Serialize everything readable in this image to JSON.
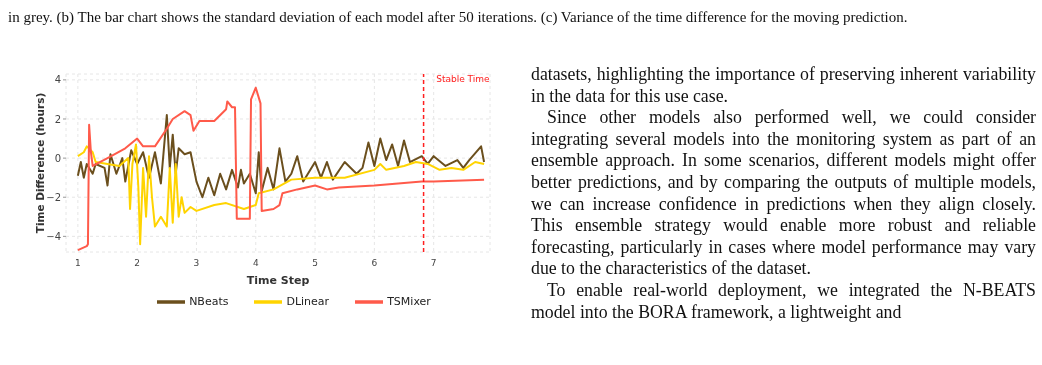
{
  "chart_data": {
    "type": "line",
    "xlabel": "Time Step",
    "ylabel": "Time Difference (hours)",
    "xlim": [
      0.8,
      7.95
    ],
    "ylim": [
      -4.8,
      4.3
    ],
    "xticks": [
      1,
      2,
      3,
      4,
      5,
      6,
      7
    ],
    "yticks": [
      -4,
      -2,
      0,
      2,
      4
    ],
    "grid": true,
    "legend": "bottom",
    "line_style": "solid",
    "marker": "none",
    "ref_lines": [
      {
        "axis": "x",
        "value": 6.83,
        "label": "Stable Time",
        "color": "#ff2020",
        "line_style": "dashed"
      }
    ],
    "series": [
      {
        "name": "NBeats",
        "color": "#6b4f1d",
        "x": [
          1.0,
          1.05,
          1.1,
          1.15,
          1.25,
          1.3,
          1.45,
          1.5,
          1.55,
          1.65,
          1.75,
          1.8,
          1.9,
          2.0,
          2.1,
          2.2,
          2.3,
          2.4,
          2.5,
          2.55,
          2.6,
          2.65,
          2.7,
          2.8,
          2.9,
          3.0,
          3.1,
          3.2,
          3.3,
          3.4,
          3.5,
          3.6,
          3.7,
          3.75,
          3.8,
          3.9,
          4.0,
          4.05,
          4.1,
          4.2,
          4.3,
          4.4,
          4.5,
          4.6,
          4.7,
          4.8,
          5.0,
          5.1,
          5.2,
          5.3,
          5.5,
          5.7,
          5.8,
          5.9,
          6.0,
          6.1,
          6.2,
          6.3,
          6.4,
          6.5,
          6.6,
          6.8,
          6.9,
          7.0,
          7.2,
          7.4,
          7.5,
          7.6,
          7.8,
          7.85
        ],
        "values": [
          -0.9,
          -0.2,
          -1.0,
          -0.3,
          -0.8,
          -0.3,
          -0.5,
          -1.4,
          0.2,
          -0.8,
          0,
          -1.2,
          0.4,
          -0.3,
          0.3,
          -1.0,
          0.3,
          -1.3,
          2.2,
          -0.5,
          1.2,
          -0.8,
          0.5,
          0.2,
          0.3,
          -1.2,
          -2.0,
          -1.0,
          -1.9,
          -0.8,
          -1.6,
          -0.6,
          -1.5,
          -0.6,
          -1.3,
          -0.8,
          -1.8,
          0.3,
          -1.7,
          -0.5,
          -1.6,
          0.5,
          -1.2,
          -0.8,
          0.1,
          -1.2,
          -0.2,
          -1.0,
          -0.2,
          -1.1,
          -0.2,
          -0.8,
          -0.5,
          0.8,
          -0.4,
          1.0,
          -0.1,
          0.7,
          -0.4,
          0.9,
          -0.2,
          0.1,
          -0.3,
          0.1,
          -0.4,
          -0.1,
          -0.5,
          -0.1,
          0.6,
          -0.2
        ]
      },
      {
        "name": "DLinear",
        "color": "#ffd400",
        "x": [
          1.0,
          1.1,
          1.15,
          1.25,
          1.3,
          1.5,
          1.7,
          1.85,
          1.88,
          1.92,
          1.98,
          2.02,
          2.05,
          2.1,
          2.15,
          2.2,
          2.25,
          2.3,
          2.4,
          2.5,
          2.55,
          2.6,
          2.65,
          2.7,
          2.75,
          2.8,
          2.9,
          3.0,
          3.3,
          3.5,
          3.8,
          4.0,
          4.05,
          4.3,
          4.6,
          5.0,
          5.5,
          6.0,
          6.1,
          6.2,
          6.5,
          6.7,
          6.9,
          7.1,
          7.3,
          7.5,
          7.7,
          7.85
        ],
        "values": [
          0.1,
          0.3,
          0.6,
          0.3,
          -0.2,
          -0.3,
          -0.4,
          0,
          -2.6,
          -0.3,
          0.7,
          -1.5,
          -4.4,
          -0.5,
          -3.0,
          0.1,
          -2.0,
          -3.5,
          -3.0,
          -3.5,
          -0.5,
          -3.3,
          -0.3,
          -3.0,
          -2.0,
          -2.8,
          -2.5,
          -2.7,
          -2.4,
          -2.3,
          -2.6,
          -2.4,
          -1.8,
          -1.6,
          -1.1,
          -1.0,
          -1.0,
          -0.6,
          -0.3,
          -0.6,
          -0.4,
          -0.2,
          -0.3,
          -0.6,
          -0.5,
          -0.6,
          -0.2,
          -0.3
        ]
      },
      {
        "name": "TSMixer",
        "color": "#ff5a4a",
        "x": [
          1.0,
          1.15,
          1.17,
          1.19,
          1.22,
          1.25,
          1.5,
          1.8,
          2.0,
          2.1,
          2.3,
          2.5,
          2.6,
          2.8,
          2.9,
          2.95,
          3.05,
          3.3,
          3.5,
          3.52,
          3.6,
          3.65,
          3.68,
          3.9,
          3.92,
          4.0,
          4.08,
          4.1,
          4.3,
          4.4,
          4.45,
          4.7,
          5.0,
          5.2,
          5.4,
          6.0,
          6.8,
          7.0,
          7.85
        ],
        "values": [
          -4.7,
          -4.5,
          -4.4,
          1.7,
          0.3,
          -0.4,
          0,
          0.5,
          1.0,
          0.6,
          0.6,
          1.5,
          2.0,
          2.4,
          2.2,
          1.4,
          1.9,
          1.9,
          2.5,
          2.9,
          2.6,
          2.6,
          -3.1,
          -3.1,
          3.0,
          3.6,
          2.8,
          -2.7,
          -2.6,
          -2.4,
          -1.8,
          -1.6,
          -1.4,
          -1.6,
          -1.5,
          -1.4,
          -1.2,
          -1.2,
          -1.1
        ]
      }
    ],
    "annotations": [
      "in grey. (b) The bar chart shows the standard deviation of each model after 50 iterations. (c) Variance of the time difference for the moving prediction.",
      "datasets, highlighting the importance of preserving inherent variability in the data for this use case.",
      "Since other models also performed well, we could consider integrating several models into the monitoring system as part of an ensemble approach. In some scenarios, different models might offer better predictions, and by comparing the outputs of multiple models, we can increase confidence in predictions when they align closely. This ensemble strategy would enable more robust and reliable forecasting, particularly in cases where model performance may vary due to the characteristics of the dataset.",
      "To enable real-world deployment, we integrated the N-BEATS model into the BORA framework, a lightweight and"
    ]
  }
}
